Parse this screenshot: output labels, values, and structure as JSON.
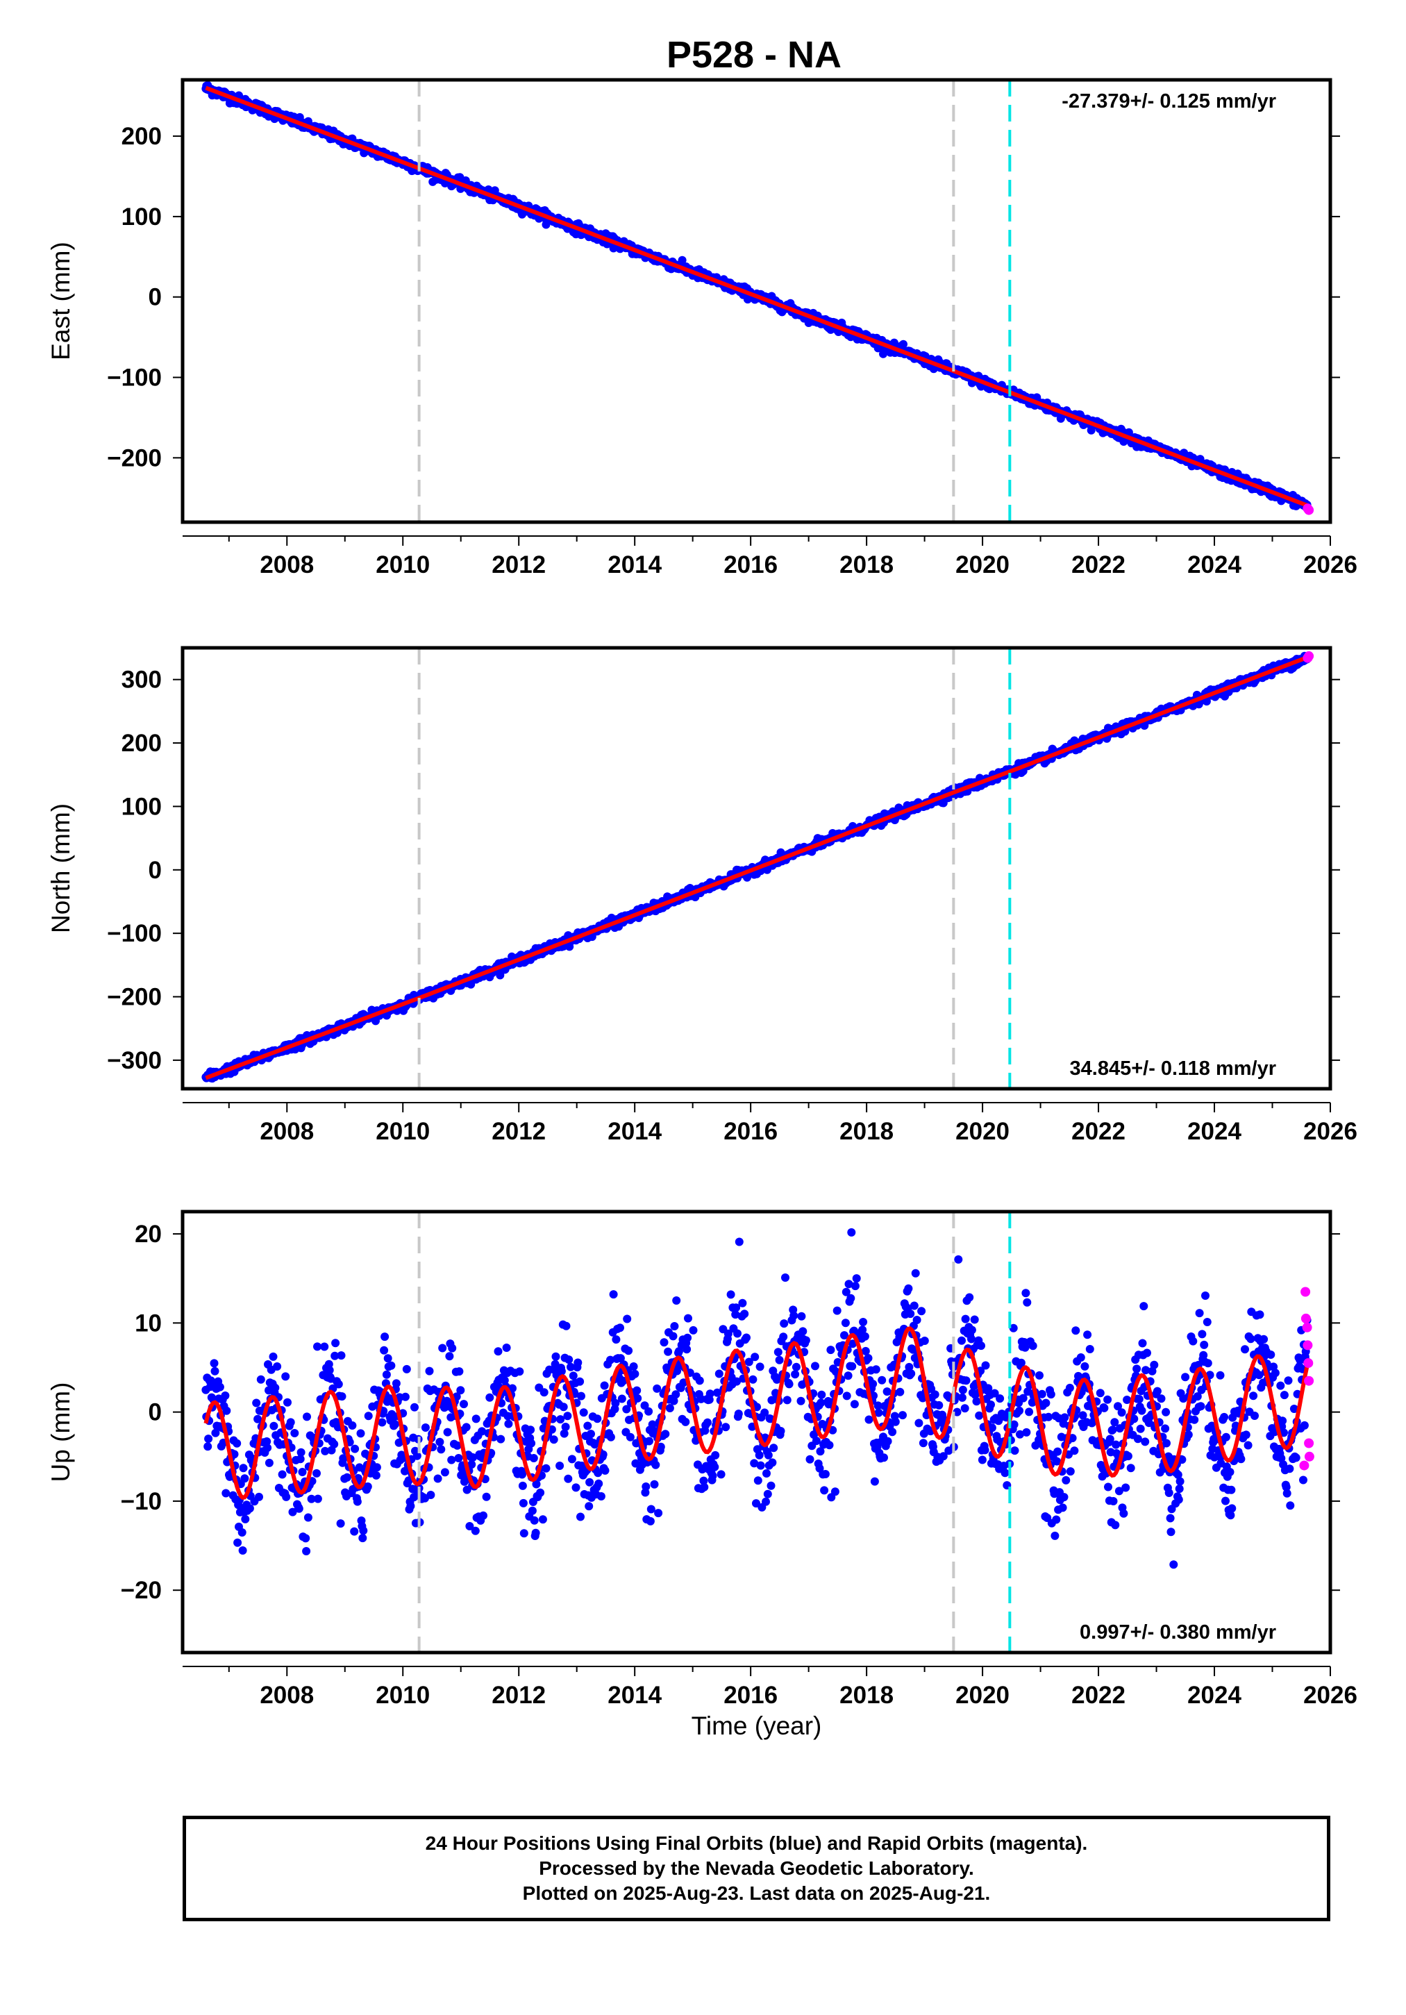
{
  "title": "P528 - NA",
  "colors": {
    "final": "#0000ff",
    "rapid": "#ff00ff",
    "model": "#ff0000",
    "antenna_change": "#c8c8c8",
    "event": "#00e5e5",
    "frame": "#000000"
  },
  "footer": {
    "line1": "24 Hour Positions Using Final Orbits (blue) and Rapid Orbits (magenta).",
    "line2": "Processed by the Nevada Geodetic Laboratory.",
    "line3": "Plotted on 2025-Aug-23. Last data on 2025-Aug-21."
  },
  "chart_data": [
    {
      "type": "scatter",
      "ylabel": "East (mm)",
      "rate": "-27.379+/- 0.125 mm/yr",
      "xlim": [
        2006.2,
        2026.0
      ],
      "ylim": [
        -280,
        270
      ],
      "x_ticks": [
        2008,
        2010,
        2012,
        2014,
        2016,
        2018,
        2020,
        2022,
        2024,
        2026
      ],
      "y_ticks": [
        -200,
        -100,
        0,
        100,
        200
      ],
      "y_tick_labels": [
        "−200",
        "−100",
        "0",
        "100",
        "200"
      ],
      "vlines_gray": [
        2010.28,
        2019.5
      ],
      "vlines_cyan": [
        2020.47
      ],
      "series": {
        "model_x": [
          2006.6,
          2010.28,
          2019.5,
          2025.63
        ],
        "model_y": [
          260,
          160,
          -92,
          -260
        ],
        "scatter_sigma": 3,
        "rapid_points": [
          [
            2025.61,
            -263
          ],
          [
            2025.63,
            -265
          ]
        ]
      }
    },
    {
      "type": "scatter",
      "ylabel": "North (mm)",
      "rate": "34.845+/- 0.118 mm/yr",
      "xlim": [
        2006.2,
        2026.0
      ],
      "ylim": [
        -345,
        350
      ],
      "x_ticks": [
        2008,
        2010,
        2012,
        2014,
        2016,
        2018,
        2020,
        2022,
        2024,
        2026
      ],
      "y_ticks": [
        -300,
        -200,
        -100,
        0,
        100,
        200,
        300
      ],
      "y_tick_labels": [
        "−300",
        "−200",
        "−100",
        "0",
        "100",
        "200",
        "300"
      ],
      "vlines_gray": [
        2010.28,
        2019.5
      ],
      "vlines_cyan": [
        2020.47
      ],
      "series": {
        "model_x": [
          2006.6,
          2010.28,
          2019.5,
          2020.47,
          2025.63
        ],
        "model_y": [
          -328,
          -202,
          122,
          155,
          336
        ],
        "scatter_sigma": 3.5,
        "rapid_points": [
          [
            2025.61,
            334
          ],
          [
            2025.63,
            337
          ]
        ]
      }
    },
    {
      "type": "scatter",
      "ylabel": "Up (mm)",
      "xlabel": "Time (year)",
      "rate": "0.997+/- 0.380 mm/yr",
      "xlim": [
        2006.2,
        2026.0
      ],
      "ylim": [
        -27,
        22.5
      ],
      "x_ticks": [
        2008,
        2010,
        2012,
        2014,
        2016,
        2018,
        2020,
        2022,
        2024,
        2026
      ],
      "y_ticks": [
        -20,
        -10,
        0,
        10,
        20
      ],
      "y_tick_labels": [
        "−20",
        "−10",
        "0",
        "10",
        "20"
      ],
      "vlines_gray": [
        2010.28,
        2019.5
      ],
      "vlines_cyan": [
        2020.47
      ],
      "series": {
        "annual_amplitude_mm": 5.5,
        "trend_points_x": [
          2006.6,
          2010.0,
          2011.5,
          2014.0,
          2016.5,
          2018.7,
          2019.5,
          2021.5,
          2023.5,
          2025.63
        ],
        "trend_points_y": [
          -4.5,
          -2.5,
          -3.0,
          0.0,
          2.0,
          4.0,
          2.0,
          -2.0,
          -1.0,
          2.0
        ],
        "scatter_sigma": 3.5,
        "rapid_points": [
          [
            2025.55,
            -6
          ],
          [
            2025.57,
            13.5
          ],
          [
            2025.58,
            10.5
          ],
          [
            2025.6,
            9.5
          ],
          [
            2025.61,
            7.5
          ],
          [
            2025.62,
            5.5
          ],
          [
            2025.63,
            3.5
          ],
          [
            2025.63,
            -3.5
          ],
          [
            2025.64,
            -5
          ]
        ]
      }
    }
  ]
}
